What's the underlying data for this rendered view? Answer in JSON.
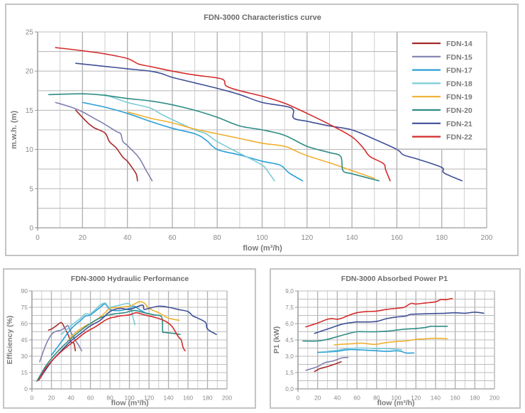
{
  "colors": {
    "FDN-14": "#a52a2a",
    "FDN-15": "#8080b0",
    "FDN-17": "#2a9fd6",
    "FDN-18": "#7ccbd6",
    "FDN-19": "#f0b030",
    "FDN-20": "#2e8c85",
    "FDN-21": "#3e4f96",
    "FDN-22": "#d42a2a"
  },
  "chart_data": [
    {
      "type": "line",
      "title": "FDN-3000 Characteristics curve",
      "xlabel": "flow (m³/h)",
      "ylabel": "m.w.h. (m)",
      "xlim": [
        0,
        200
      ],
      "ylim": [
        0,
        25
      ],
      "xticks": [
        "0",
        "20",
        "40",
        "60",
        "80",
        "100",
        "120",
        "140",
        "160",
        "180",
        "200"
      ],
      "yticks": [
        "0",
        "5",
        "10",
        "15",
        "20",
        "25"
      ],
      "grid": true,
      "legend": "right",
      "legend_entries": [
        "FDN-14",
        "FDN-15",
        "FDN-17",
        "FDN-18",
        "FDN-19",
        "FDN-20",
        "FDN-21",
        "FDN-22"
      ],
      "series": [
        {
          "name": "FDN-14",
          "x": [
            17,
            22,
            25,
            30,
            32,
            35,
            38,
            40,
            43,
            44,
            44.5
          ],
          "y": [
            15,
            13.5,
            12.8,
            12.1,
            11,
            10.2,
            9,
            8.5,
            7.3,
            6.8,
            6
          ]
        },
        {
          "name": "FDN-15",
          "x": [
            8,
            15,
            20,
            25,
            30,
            35,
            37,
            38,
            40,
            45,
            48,
            51
          ],
          "y": [
            16,
            15.4,
            14.8,
            14,
            13.2,
            12.3,
            12,
            11,
            10.5,
            9,
            7.5,
            6
          ]
        },
        {
          "name": "FDN-17",
          "x": [
            20,
            30,
            40,
            50,
            60,
            70,
            75,
            80,
            90,
            100,
            108,
            112,
            118
          ],
          "y": [
            16,
            15.4,
            14.6,
            13.6,
            12.7,
            12,
            11.2,
            10,
            9.3,
            8.5,
            8,
            7,
            6
          ]
        },
        {
          "name": "FDN-18",
          "x": [
            30,
            40,
            50,
            55,
            60,
            70,
            75,
            80,
            90,
            100,
            103,
            105.5
          ],
          "y": [
            17,
            16,
            15.3,
            14.5,
            13.8,
            12.5,
            12,
            11,
            9.5,
            8,
            7,
            6
          ]
        },
        {
          "name": "FDN-19",
          "x": [
            40,
            50,
            60,
            70,
            80,
            90,
            100,
            110,
            115,
            120,
            130,
            140,
            150
          ],
          "y": [
            14.8,
            14,
            13.4,
            12.6,
            12,
            11.4,
            10.8,
            10.4,
            9.8,
            9.2,
            8.3,
            7.3,
            6.3
          ]
        },
        {
          "name": "FDN-20",
          "x": [
            5,
            20,
            30,
            40,
            50,
            60,
            70,
            80,
            90,
            100,
            110,
            120,
            130,
            135,
            136,
            140,
            152
          ],
          "y": [
            17,
            17.1,
            16.9,
            16.5,
            16.2,
            15.7,
            15,
            14.1,
            13,
            12.5,
            11.8,
            10.4,
            9.6,
            9.1,
            7.3,
            6.9,
            6
          ]
        },
        {
          "name": "FDN-21",
          "x": [
            17,
            30,
            40,
            50,
            55,
            60,
            70,
            80,
            90,
            100,
            113,
            114,
            120,
            130,
            140,
            150,
            160,
            163,
            170,
            180,
            181,
            189
          ],
          "y": [
            21,
            20.6,
            20.3,
            20,
            19.7,
            19.2,
            18.5,
            17.8,
            17,
            16,
            15.3,
            14,
            13.6,
            13,
            12.5,
            11.3,
            10,
            9.3,
            8.7,
            7.7,
            7,
            6
          ]
        },
        {
          "name": "FDN-22",
          "x": [
            8,
            20,
            30,
            40,
            45,
            50,
            60,
            70,
            82,
            84,
            90,
            100,
            110,
            120,
            130,
            140,
            145,
            148,
            154,
            155,
            157
          ],
          "y": [
            23,
            22.6,
            22.2,
            21.6,
            20.9,
            20.6,
            20,
            19.5,
            19,
            18.1,
            17.5,
            16.8,
            15.9,
            14.6,
            13.2,
            11.6,
            10.2,
            9.1,
            8.2,
            7.4,
            6
          ]
        }
      ]
    },
    {
      "type": "line",
      "title": "FDN-3000 Hydraulic Performance",
      "xlabel": "flow (m³/h)",
      "ylabel": "Efficiency (%)",
      "xlim": [
        0,
        200
      ],
      "ylim": [
        0,
        90
      ],
      "xticks": [
        "0",
        "20",
        "40",
        "60",
        "80",
        "100",
        "120",
        "140",
        "160",
        "180",
        "200"
      ],
      "yticks": [
        "0",
        "15",
        "30",
        "45",
        "60",
        "75",
        "90"
      ],
      "grid": true,
      "series": [
        {
          "name": "FDN-14",
          "x": [
            17,
            20,
            25,
            30,
            33,
            37,
            40,
            43,
            44.5
          ],
          "y": [
            54,
            55,
            58,
            61,
            57,
            50,
            43,
            42,
            35
          ]
        },
        {
          "name": "FDN-15",
          "x": [
            8,
            14,
            20,
            25,
            30,
            35,
            37,
            40,
            45,
            48,
            51
          ],
          "y": [
            25,
            40,
            50,
            53,
            54,
            57,
            58,
            52,
            44,
            40,
            35
          ]
        },
        {
          "name": "FDN-17",
          "x": [
            20,
            30,
            40,
            50,
            55,
            60,
            70,
            75,
            80,
            90,
            100,
            105,
            110,
            118
          ],
          "y": [
            31,
            43,
            55,
            63,
            67,
            68,
            75,
            78,
            73,
            72,
            74,
            76,
            73,
            69
          ]
        },
        {
          "name": "FDN-18",
          "x": [
            30,
            40,
            50,
            55,
            60,
            70,
            75,
            77,
            80,
            90,
            100,
            103,
            105.5
          ],
          "y": [
            50,
            58,
            65,
            69,
            69,
            77,
            79,
            77,
            75,
            77,
            78,
            68,
            59
          ]
        },
        {
          "name": "FDN-19",
          "x": [
            37,
            45,
            55,
            60,
            70,
            75,
            80,
            90,
            100,
            105,
            110,
            115,
            120,
            130,
            140,
            151
          ],
          "y": [
            44,
            52,
            58,
            60,
            66,
            70,
            74,
            75,
            76,
            78,
            80,
            79,
            74,
            70,
            65,
            63
          ]
        },
        {
          "name": "FDN-20",
          "x": [
            5,
            15,
            25,
            35,
            45,
            55,
            65,
            75,
            85,
            95,
            105,
            115,
            125,
            133,
            134,
            136,
            145,
            152
          ],
          "y": [
            7,
            22,
            33,
            42,
            50,
            57,
            63,
            67,
            69,
            70,
            72,
            70,
            68,
            66,
            53,
            52,
            51,
            50
          ]
        },
        {
          "name": "FDN-21",
          "x": [
            7,
            20,
            30,
            40,
            50,
            60,
            70,
            80,
            90,
            100,
            113,
            115,
            120,
            130,
            140,
            150,
            160,
            165,
            170,
            178,
            180,
            189
          ],
          "y": [
            8,
            25,
            35,
            44,
            51,
            58,
            63,
            71,
            74,
            73,
            77,
            73,
            74,
            76,
            75,
            73,
            71,
            67,
            65,
            61,
            55,
            50
          ]
        },
        {
          "name": "FDN-22",
          "x": [
            7,
            15,
            25,
            35,
            45,
            55,
            65,
            75,
            80,
            85,
            90,
            100,
            107,
            115,
            125,
            135,
            143,
            150,
            153,
            155,
            157
          ],
          "y": [
            8,
            20,
            30,
            38,
            45,
            52,
            57,
            63,
            65,
            66,
            67,
            68,
            70,
            68,
            66,
            63,
            58,
            48,
            45,
            38,
            35
          ]
        }
      ]
    },
    {
      "type": "line",
      "title": "FDN-3000 Absorbed Power P1",
      "xlabel": "flow (m³/h)",
      "ylabel": "P1 (kW)",
      "xlim": [
        0,
        200
      ],
      "ylim": [
        0,
        9
      ],
      "xticks": [
        "0",
        "20",
        "40",
        "60",
        "80",
        "100",
        "120",
        "140",
        "160",
        "180",
        "200"
      ],
      "yticks": [
        "0,0",
        "1,5",
        "3,0",
        "4,5",
        "6,0",
        "7,5",
        "9,0"
      ],
      "grid": true,
      "series": [
        {
          "name": "FDN-14",
          "x": [
            17,
            22,
            30,
            35,
            40,
            44
          ],
          "y": [
            1.6,
            1.85,
            2.05,
            2.2,
            2.35,
            2.5
          ]
        },
        {
          "name": "FDN-15",
          "x": [
            8,
            20,
            27,
            35,
            40,
            45,
            51
          ],
          "y": [
            1.7,
            2.05,
            2.4,
            2.55,
            2.7,
            2.85,
            2.9
          ]
        },
        {
          "name": "FDN-17",
          "x": [
            20,
            30,
            40,
            50,
            60,
            70,
            80,
            90,
            100,
            105,
            110,
            118
          ],
          "y": [
            3.35,
            3.4,
            3.45,
            3.6,
            3.6,
            3.55,
            3.5,
            3.45,
            3.5,
            3.45,
            3.3,
            3.3
          ]
        },
        {
          "name": "FDN-18",
          "x": [
            30,
            40,
            50,
            60,
            70,
            80,
            90,
            100,
            105.5
          ],
          "y": [
            3.45,
            3.55,
            3.7,
            3.75,
            3.75,
            3.7,
            3.7,
            3.65,
            3.6
          ]
        },
        {
          "name": "FDN-19",
          "x": [
            37,
            45,
            55,
            65,
            75,
            80,
            90,
            100,
            110,
            120,
            130,
            140,
            152
          ],
          "y": [
            4.05,
            4.1,
            4.15,
            4.2,
            4.1,
            4.1,
            4.25,
            4.35,
            4.4,
            4.55,
            4.6,
            4.65,
            4.6
          ]
        },
        {
          "name": "FDN-20",
          "x": [
            5,
            20,
            30,
            40,
            50,
            60,
            70,
            80,
            90,
            100,
            110,
            120,
            130,
            135,
            140,
            152
          ],
          "y": [
            4.4,
            4.4,
            4.55,
            4.8,
            5.05,
            5.25,
            5.25,
            5.25,
            5.3,
            5.4,
            5.5,
            5.55,
            5.65,
            5.75,
            5.75,
            5.75
          ]
        },
        {
          "name": "FDN-21",
          "x": [
            17,
            25,
            35,
            45,
            55,
            60,
            70,
            80,
            90,
            100,
            110,
            115,
            130,
            150,
            160,
            170,
            180,
            189
          ],
          "y": [
            5.1,
            5.35,
            5.65,
            5.95,
            6.1,
            6.15,
            6.15,
            6.2,
            6.45,
            6.6,
            6.7,
            6.85,
            6.9,
            6.95,
            7.0,
            6.95,
            7.05,
            6.95
          ]
        },
        {
          "name": "FDN-22",
          "x": [
            8,
            20,
            30,
            35,
            40,
            45,
            50,
            60,
            70,
            80,
            90,
            100,
            108,
            115,
            120,
            130,
            140,
            145,
            150,
            157
          ],
          "y": [
            5.7,
            6.05,
            6.4,
            6.45,
            6.4,
            6.5,
            6.7,
            7.0,
            7.1,
            7.15,
            7.3,
            7.4,
            7.5,
            7.85,
            7.8,
            7.9,
            8.0,
            8.2,
            8.2,
            8.3
          ]
        }
      ]
    }
  ]
}
